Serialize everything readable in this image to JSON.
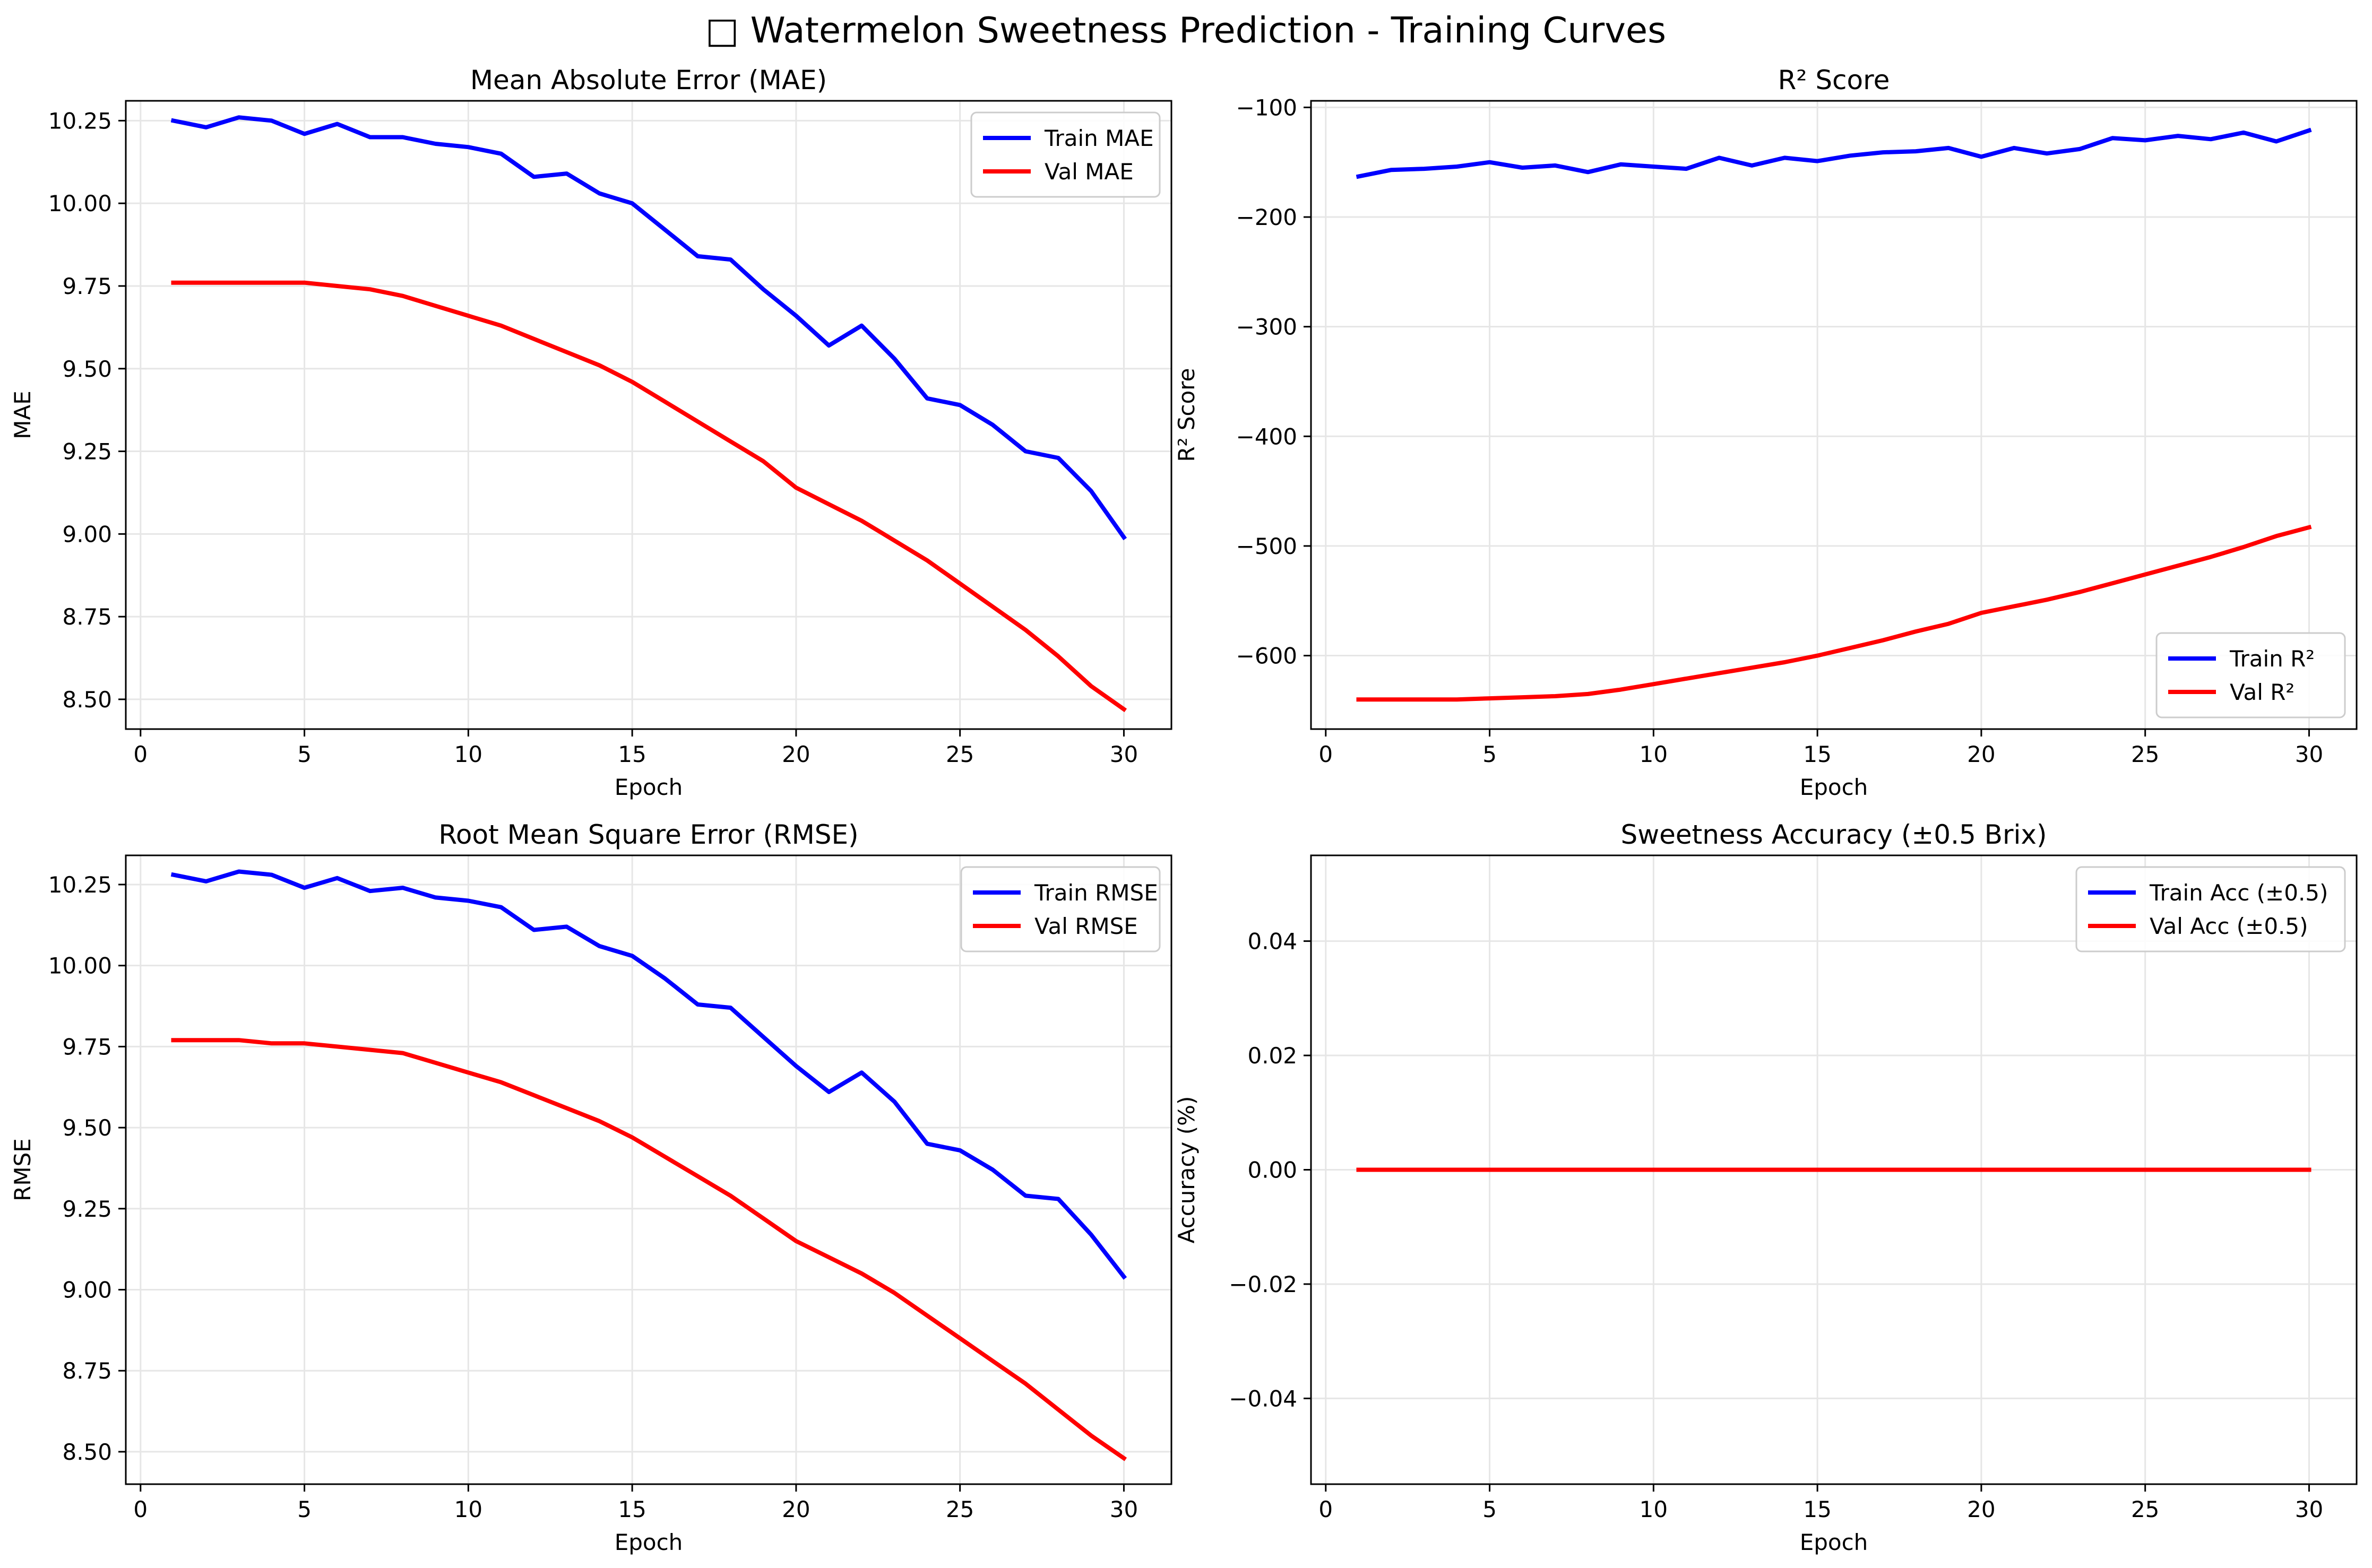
{
  "figure": {
    "title": "□ Watermelon Sweetness Prediction - Training Curves"
  },
  "colors": {
    "train": "#0000ff",
    "val": "#ff0000",
    "grid": "#e6e6e6"
  },
  "chart_data": [
    {
      "type": "line",
      "title": "Mean Absolute Error (MAE)",
      "xlabel": "Epoch",
      "ylabel": "MAE",
      "xlim": [
        -0.45,
        31.45
      ],
      "ylim": [
        8.41,
        10.31
      ],
      "xticks": [
        0,
        5,
        10,
        15,
        20,
        25,
        30
      ],
      "yticks": [
        8.5,
        8.75,
        9.0,
        9.25,
        9.5,
        9.75,
        10.0,
        10.25
      ],
      "yticklabels": [
        "8.50",
        "8.75",
        "9.00",
        "9.25",
        "9.50",
        "9.75",
        "10.00",
        "10.25"
      ],
      "grid": true,
      "legend": "upper right",
      "x": [
        1,
        2,
        3,
        4,
        5,
        6,
        7,
        8,
        9,
        10,
        11,
        12,
        13,
        14,
        15,
        16,
        17,
        18,
        19,
        20,
        21,
        22,
        23,
        24,
        25,
        26,
        27,
        28,
        29,
        30
      ],
      "series": [
        {
          "name": "Train MAE",
          "color": "train",
          "values": [
            10.25,
            10.23,
            10.26,
            10.25,
            10.21,
            10.24,
            10.2,
            10.2,
            10.18,
            10.17,
            10.15,
            10.08,
            10.09,
            10.03,
            10.0,
            9.92,
            9.84,
            9.83,
            9.74,
            9.66,
            9.57,
            9.63,
            9.53,
            9.41,
            9.39,
            9.33,
            9.25,
            9.23,
            9.13,
            8.99
          ]
        },
        {
          "name": "Val MAE",
          "color": "val",
          "values": [
            9.76,
            9.76,
            9.76,
            9.76,
            9.76,
            9.75,
            9.74,
            9.72,
            9.69,
            9.66,
            9.63,
            9.59,
            9.55,
            9.51,
            9.46,
            9.4,
            9.34,
            9.28,
            9.22,
            9.14,
            9.09,
            9.04,
            8.98,
            8.92,
            8.85,
            8.78,
            8.71,
            8.63,
            8.54,
            8.47
          ]
        }
      ]
    },
    {
      "type": "line",
      "title": "R² Score",
      "xlabel": "Epoch",
      "ylabel": "R² Score",
      "xlim": [
        -0.45,
        31.45
      ],
      "ylim": [
        -667,
        -94
      ],
      "xticks": [
        0,
        5,
        10,
        15,
        20,
        25,
        30
      ],
      "yticks": [
        -600,
        -500,
        -400,
        -300,
        -200,
        -100
      ],
      "yticklabels": [
        "−600",
        "−500",
        "−400",
        "−300",
        "−200",
        "−100"
      ],
      "grid": true,
      "legend": "lower right",
      "x": [
        1,
        2,
        3,
        4,
        5,
        6,
        7,
        8,
        9,
        10,
        11,
        12,
        13,
        14,
        15,
        16,
        17,
        18,
        19,
        20,
        21,
        22,
        23,
        24,
        25,
        26,
        27,
        28,
        29,
        30
      ],
      "series": [
        {
          "name": "Train R²",
          "color": "train",
          "values": [
            -163,
            -157,
            -156,
            -154,
            -150,
            -155,
            -153,
            -159,
            -152,
            -154,
            -156,
            -146,
            -153,
            -146,
            -149,
            -144,
            -141,
            -140,
            -137,
            -145,
            -137,
            -142,
            -138,
            -128,
            -130,
            -126,
            -129,
            -123,
            -131,
            -121
          ]
        },
        {
          "name": "Val R²",
          "color": "val",
          "values": [
            -640,
            -640,
            -640,
            -640,
            -639,
            -638,
            -637,
            -635,
            -631,
            -626,
            -621,
            -616,
            -611,
            -606,
            -600,
            -593,
            -586,
            -578,
            -571,
            -561,
            -555,
            -549,
            -542,
            -534,
            -526,
            -518,
            -510,
            -501,
            -491,
            -483
          ]
        }
      ]
    },
    {
      "type": "line",
      "title": "Root Mean Square Error (RMSE)",
      "xlabel": "Epoch",
      "ylabel": "RMSE",
      "xlim": [
        -0.45,
        31.45
      ],
      "ylim": [
        8.4,
        10.34
      ],
      "xticks": [
        0,
        5,
        10,
        15,
        20,
        25,
        30
      ],
      "yticks": [
        8.5,
        8.75,
        9.0,
        9.25,
        9.5,
        9.75,
        10.0,
        10.25
      ],
      "yticklabels": [
        "8.50",
        "8.75",
        "9.00",
        "9.25",
        "9.50",
        "9.75",
        "10.00",
        "10.25"
      ],
      "grid": true,
      "legend": "upper right",
      "x": [
        1,
        2,
        3,
        4,
        5,
        6,
        7,
        8,
        9,
        10,
        11,
        12,
        13,
        14,
        15,
        16,
        17,
        18,
        19,
        20,
        21,
        22,
        23,
        24,
        25,
        26,
        27,
        28,
        29,
        30
      ],
      "series": [
        {
          "name": "Train RMSE",
          "color": "train",
          "values": [
            10.28,
            10.26,
            10.29,
            10.28,
            10.24,
            10.27,
            10.23,
            10.24,
            10.21,
            10.2,
            10.18,
            10.11,
            10.12,
            10.06,
            10.03,
            9.96,
            9.88,
            9.87,
            9.78,
            9.69,
            9.61,
            9.67,
            9.58,
            9.45,
            9.43,
            9.37,
            9.29,
            9.28,
            9.17,
            9.04
          ]
        },
        {
          "name": "Val RMSE",
          "color": "val",
          "values": [
            9.77,
            9.77,
            9.77,
            9.76,
            9.76,
            9.75,
            9.74,
            9.73,
            9.7,
            9.67,
            9.64,
            9.6,
            9.56,
            9.52,
            9.47,
            9.41,
            9.35,
            9.29,
            9.22,
            9.15,
            9.1,
            9.05,
            8.99,
            8.92,
            8.85,
            8.78,
            8.71,
            8.63,
            8.55,
            8.48
          ]
        }
      ]
    },
    {
      "type": "line",
      "title": "Sweetness Accuracy (±0.5 Brix)",
      "xlabel": "Epoch",
      "ylabel": "Accuracy (%)",
      "xlim": [
        -0.45,
        31.45
      ],
      "ylim": [
        -0.055,
        0.055
      ],
      "xticks": [
        0,
        5,
        10,
        15,
        20,
        25,
        30
      ],
      "yticks": [
        -0.04,
        -0.02,
        0.0,
        0.02,
        0.04
      ],
      "yticklabels": [
        "−0.04",
        "−0.02",
        "0.00",
        "0.02",
        "0.04"
      ],
      "grid": true,
      "legend": "upper right",
      "x": [
        1,
        2,
        3,
        4,
        5,
        6,
        7,
        8,
        9,
        10,
        11,
        12,
        13,
        14,
        15,
        16,
        17,
        18,
        19,
        20,
        21,
        22,
        23,
        24,
        25,
        26,
        27,
        28,
        29,
        30
      ],
      "series": [
        {
          "name": "Train Acc (±0.5)",
          "color": "train",
          "values": [
            0,
            0,
            0,
            0,
            0,
            0,
            0,
            0,
            0,
            0,
            0,
            0,
            0,
            0,
            0,
            0,
            0,
            0,
            0,
            0,
            0,
            0,
            0,
            0,
            0,
            0,
            0,
            0,
            0,
            0
          ]
        },
        {
          "name": "Val Acc (±0.5)",
          "color": "val",
          "values": [
            0,
            0,
            0,
            0,
            0,
            0,
            0,
            0,
            0,
            0,
            0,
            0,
            0,
            0,
            0,
            0,
            0,
            0,
            0,
            0,
            0,
            0,
            0,
            0,
            0,
            0,
            0,
            0,
            0,
            0
          ]
        }
      ]
    }
  ]
}
